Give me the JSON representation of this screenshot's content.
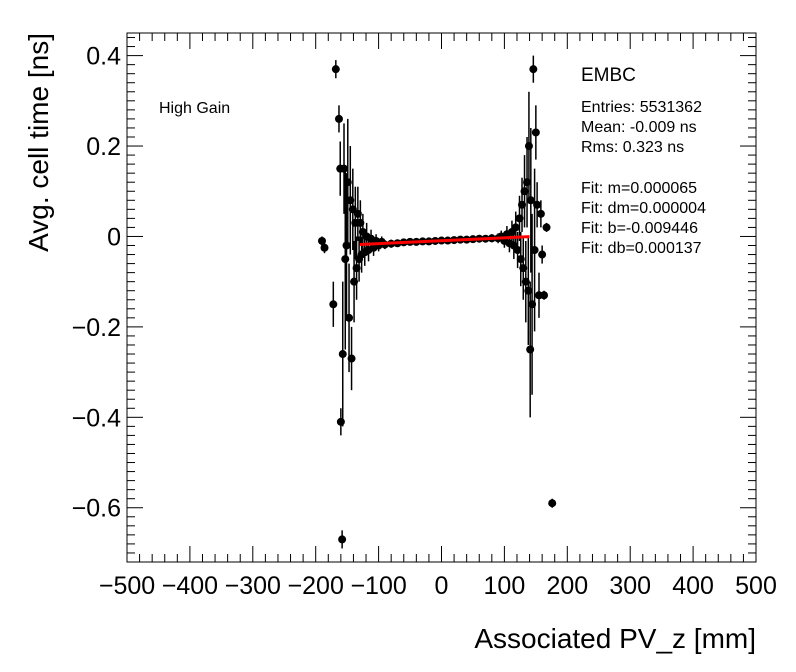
{
  "chart_data": {
    "type": "scatter",
    "title": "",
    "xlabel": "Associated PV_z [mm]",
    "ylabel": "Avg. cell time [ns]",
    "xlim": [
      -500,
      500
    ],
    "ylim": [
      -0.72,
      0.45
    ],
    "x_ticks": [
      -500,
      -400,
      -300,
      -200,
      -100,
      0,
      100,
      200,
      300,
      400,
      500
    ],
    "x_tick_labels": [
      "−500",
      "−400",
      "−300",
      "−200",
      "−100",
      "0",
      "100",
      "200",
      "300",
      "400",
      "500"
    ],
    "y_ticks": [
      -0.6,
      -0.4,
      -0.2,
      0,
      0.2,
      0.4
    ],
    "y_tick_labels": [
      "−0.6",
      "−0.4",
      "−0.2",
      "0",
      "0.2",
      "0.4"
    ],
    "grid": false,
    "annotation": "High Gain",
    "stats_box": {
      "title": "EMBC",
      "entries": "Entries: 5531362",
      "mean": "Mean: -0.009 ns",
      "rms": "Rms: 0.323 ns",
      "fit_m": "Fit: m=0.000065",
      "fit_dm": "Fit: dm=0.000004",
      "fit_b": "Fit: b=-0.009446",
      "fit_db": "Fit: db=0.000137"
    },
    "fit_line": {
      "x_start": -130,
      "x_end": 140,
      "slope": 6.5e-05,
      "intercept": -0.009446,
      "color": "#ff0000"
    },
    "marker_color": "#000000",
    "points": [
      {
        "x": -190,
        "y": -0.01,
        "err": 0.01
      },
      {
        "x": -186,
        "y": -0.025,
        "err": 0.012
      },
      {
        "x": -172,
        "y": -0.15,
        "err": 0.05
      },
      {
        "x": -168,
        "y": 0.37,
        "err": 0.02
      },
      {
        "x": -163,
        "y": 0.26,
        "err": 0.03
      },
      {
        "x": -161,
        "y": 0.15,
        "err": 0.06
      },
      {
        "x": -160,
        "y": -0.41,
        "err": 0.03
      },
      {
        "x": -158,
        "y": -0.67,
        "err": 0.02
      },
      {
        "x": -157,
        "y": -0.26,
        "err": 0.16
      },
      {
        "x": -155,
        "y": 0.15,
        "err": 0.1
      },
      {
        "x": -153,
        "y": -0.05,
        "err": 0.2
      },
      {
        "x": -151,
        "y": -0.02,
        "err": 0.16
      },
      {
        "x": -149,
        "y": 0.12,
        "err": 0.14
      },
      {
        "x": -147,
        "y": -0.18,
        "err": 0.12
      },
      {
        "x": -145,
        "y": 0.08,
        "err": 0.12
      },
      {
        "x": -143,
        "y": -0.27,
        "err": 0.07
      },
      {
        "x": -141,
        "y": 0.06,
        "err": 0.09
      },
      {
        "x": -139,
        "y": -0.1,
        "err": 0.09
      },
      {
        "x": -137,
        "y": 0.03,
        "err": 0.08
      },
      {
        "x": -135,
        "y": -0.07,
        "err": 0.07
      },
      {
        "x": -133,
        "y": 0.05,
        "err": 0.06
      },
      {
        "x": -131,
        "y": -0.05,
        "err": 0.05
      },
      {
        "x": -129,
        "y": 0.03,
        "err": 0.05
      },
      {
        "x": -127,
        "y": -0.04,
        "err": 0.04
      },
      {
        "x": -125,
        "y": 0.01,
        "err": 0.04
      },
      {
        "x": -122,
        "y": -0.035,
        "err": 0.03
      },
      {
        "x": -119,
        "y": 0.0,
        "err": 0.03
      },
      {
        "x": -116,
        "y": -0.03,
        "err": 0.025
      },
      {
        "x": -112,
        "y": -0.005,
        "err": 0.02
      },
      {
        "x": -108,
        "y": -0.025,
        "err": 0.018
      },
      {
        "x": -104,
        "y": -0.01,
        "err": 0.015
      },
      {
        "x": -100,
        "y": -0.02,
        "err": 0.013
      },
      {
        "x": -95,
        "y": -0.012,
        "err": 0.012
      },
      {
        "x": -90,
        "y": -0.018,
        "err": 0.01
      },
      {
        "x": -80,
        "y": -0.016,
        "err": 0.009
      },
      {
        "x": -70,
        "y": -0.015,
        "err": 0.008
      },
      {
        "x": -60,
        "y": -0.013,
        "err": 0.007
      },
      {
        "x": -50,
        "y": -0.012,
        "err": 0.006
      },
      {
        "x": -40,
        "y": -0.012,
        "err": 0.006
      },
      {
        "x": -30,
        "y": -0.011,
        "err": 0.005
      },
      {
        "x": -20,
        "y": -0.011,
        "err": 0.005
      },
      {
        "x": -10,
        "y": -0.01,
        "err": 0.005
      },
      {
        "x": 0,
        "y": -0.009,
        "err": 0.005
      },
      {
        "x": 10,
        "y": -0.009,
        "err": 0.005
      },
      {
        "x": 20,
        "y": -0.008,
        "err": 0.005
      },
      {
        "x": 30,
        "y": -0.007,
        "err": 0.005
      },
      {
        "x": 40,
        "y": -0.007,
        "err": 0.006
      },
      {
        "x": 50,
        "y": -0.006,
        "err": 0.006
      },
      {
        "x": 60,
        "y": -0.005,
        "err": 0.007
      },
      {
        "x": 70,
        "y": -0.005,
        "err": 0.008
      },
      {
        "x": 80,
        "y": -0.004,
        "err": 0.009
      },
      {
        "x": 90,
        "y": -0.004,
        "err": 0.011
      },
      {
        "x": 95,
        "y": 0.0,
        "err": 0.013
      },
      {
        "x": 100,
        "y": -0.01,
        "err": 0.015
      },
      {
        "x": 104,
        "y": 0.005,
        "err": 0.018
      },
      {
        "x": 108,
        "y": -0.015,
        "err": 0.02
      },
      {
        "x": 112,
        "y": 0.01,
        "err": 0.025
      },
      {
        "x": 115,
        "y": -0.02,
        "err": 0.03
      },
      {
        "x": 118,
        "y": 0.02,
        "err": 0.035
      },
      {
        "x": 121,
        "y": -0.03,
        "err": 0.04
      },
      {
        "x": 124,
        "y": 0.04,
        "err": 0.05
      },
      {
        "x": 126,
        "y": -0.05,
        "err": 0.06
      },
      {
        "x": 128,
        "y": 0.07,
        "err": 0.06
      },
      {
        "x": 130,
        "y": -0.07,
        "err": 0.07
      },
      {
        "x": 132,
        "y": 0.1,
        "err": 0.08
      },
      {
        "x": 134,
        "y": -0.1,
        "err": 0.09
      },
      {
        "x": 136,
        "y": 0.12,
        "err": 0.1
      },
      {
        "x": 138,
        "y": -0.12,
        "err": 0.12
      },
      {
        "x": 139,
        "y": 0.2,
        "err": 0.12
      },
      {
        "x": 141,
        "y": -0.25,
        "err": 0.15
      },
      {
        "x": 142,
        "y": 0.08,
        "err": 0.16
      },
      {
        "x": 144,
        "y": -0.15,
        "err": 0.2
      },
      {
        "x": 146,
        "y": 0.37,
        "err": 0.03
      },
      {
        "x": 148,
        "y": -0.03,
        "err": 0.18
      },
      {
        "x": 150,
        "y": 0.23,
        "err": 0.06
      },
      {
        "x": 152,
        "y": 0.07,
        "err": 0.05
      },
      {
        "x": 155,
        "y": -0.13,
        "err": 0.05
      },
      {
        "x": 158,
        "y": 0.05,
        "err": 0.03
      },
      {
        "x": 160,
        "y": -0.04,
        "err": 0.02
      },
      {
        "x": 163,
        "y": -0.13,
        "err": 0.01
      },
      {
        "x": 167,
        "y": 0.02,
        "err": 0.01
      },
      {
        "x": 176,
        "y": -0.59,
        "err": 0.01
      }
    ]
  }
}
